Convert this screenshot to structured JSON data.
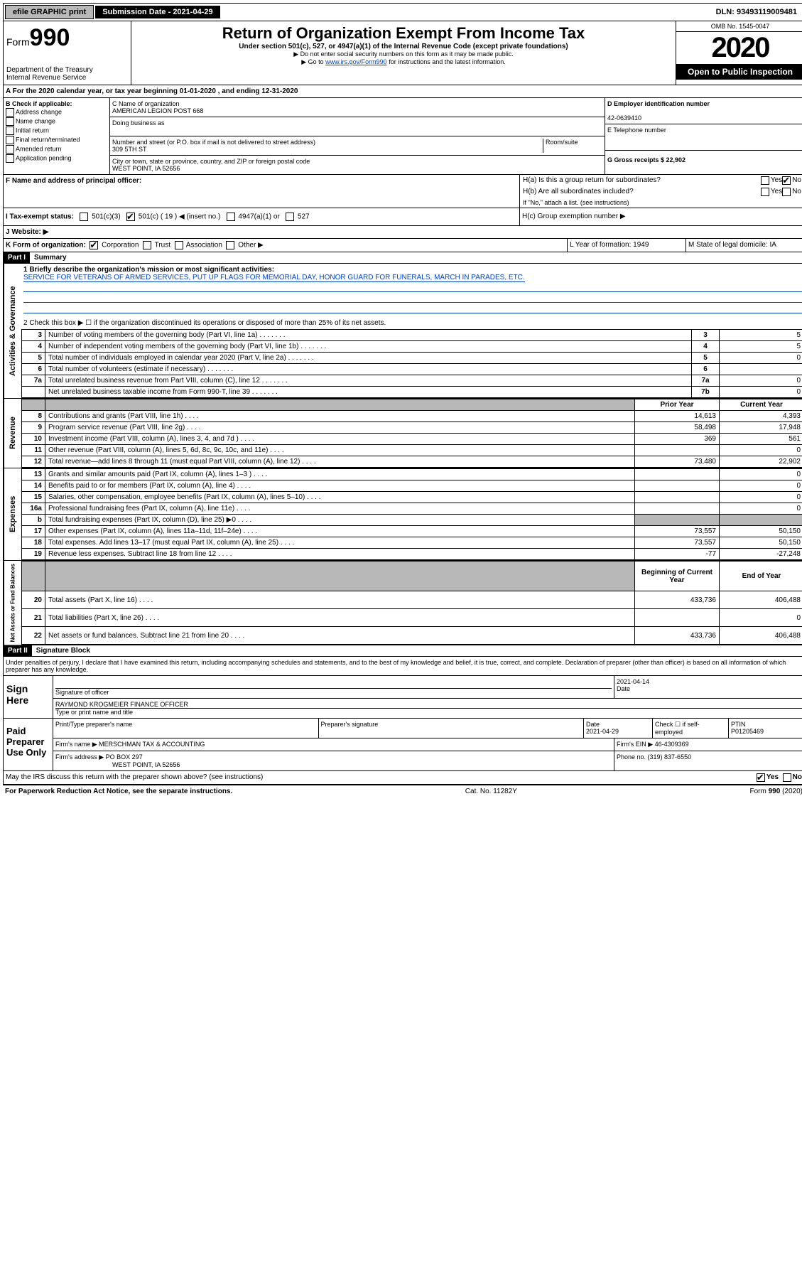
{
  "topbar": {
    "efile": "efile GRAPHIC print",
    "sub_label": "Submission Date - 2021-04-29",
    "dln": "DLN: 93493119009481"
  },
  "header": {
    "form": "Form",
    "form_num": "990",
    "dept": "Department of the Treasury",
    "irs": "Internal Revenue Service",
    "title": "Return of Organization Exempt From Income Tax",
    "subtitle": "Under section 501(c), 527, or 4947(a)(1) of the Internal Revenue Code (except private foundations)",
    "note1": "▶ Do not enter social security numbers on this form as it may be made public.",
    "note2_pre": "▶ Go to ",
    "note2_link": "www.irs.gov/Form990",
    "note2_post": " for instructions and the latest information.",
    "omb": "OMB No. 1545-0047",
    "year": "2020",
    "open": "Open to Public Inspection"
  },
  "section_a": "A For the 2020 calendar year, or tax year beginning 01-01-2020   , and ending 12-31-2020",
  "section_b": {
    "label": "B Check if applicable:",
    "items": [
      "Address change",
      "Name change",
      "Initial return",
      "Final return/terminated",
      "Amended return",
      "Application pending"
    ]
  },
  "section_c": {
    "name_label": "C Name of organization",
    "name": "AMERICAN LEGION POST 668",
    "dba_label": "Doing business as",
    "addr_label": "Number and street (or P.O. box if mail is not delivered to street address)",
    "room_label": "Room/suite",
    "addr": "309 5TH ST",
    "city_label": "City or town, state or province, country, and ZIP or foreign postal code",
    "city": "WEST POINT, IA  52656"
  },
  "section_d": {
    "label": "D Employer identification number",
    "value": "42-0639410"
  },
  "section_e": {
    "label": "E Telephone number",
    "value": ""
  },
  "section_g": {
    "label": "G Gross receipts $ 22,902"
  },
  "section_f": {
    "label": "F  Name and address of principal officer:"
  },
  "section_h": {
    "a": "H(a)  Is this a group return for subordinates?",
    "b": "H(b)  Are all subordinates included?",
    "b_note": "If \"No,\" attach a list. (see instructions)",
    "c": "H(c)  Group exemption number ▶",
    "yes": "Yes",
    "no": "No"
  },
  "section_i": {
    "label": "I  Tax-exempt status:",
    "opts": [
      "501(c)(3)",
      "501(c) ( 19 ) ◀ (insert no.)",
      "4947(a)(1) or",
      "527"
    ]
  },
  "section_j": {
    "label": "J  Website: ▶"
  },
  "section_k": {
    "label": "K Form of organization:",
    "opts": [
      "Corporation",
      "Trust",
      "Association",
      "Other ▶"
    ]
  },
  "section_l": {
    "label": "L Year of formation: 1949"
  },
  "section_m": {
    "label": "M State of legal domicile: IA"
  },
  "part1": {
    "header": "Part I",
    "title": "Summary",
    "vlabel_gov": "Activities & Governance",
    "vlabel_rev": "Revenue",
    "vlabel_exp": "Expenses",
    "vlabel_net": "Net Assets or Fund Balances",
    "line1_label": "1 Briefly describe the organization's mission or most significant activities:",
    "line1_text": "SERVICE FOR VETERANS OF ARMED SERVICES, PUT UP FLAGS FOR MEMORIAL DAY, HONOR GUARD FOR FUNERALS, MARCH IN PARADES, ETC.",
    "line2": "2  Check this box ▶ ☐  if the organization discontinued its operations or disposed of more than 25% of its net assets.",
    "prior_year": "Prior Year",
    "current_year": "Current Year",
    "beg_year": "Beginning of Current Year",
    "end_year": "End of Year",
    "rows_top": [
      {
        "n": "3",
        "d": "Number of voting members of the governing body (Part VI, line 1a)",
        "box": "3",
        "v": "5"
      },
      {
        "n": "4",
        "d": "Number of independent voting members of the governing body (Part VI, line 1b)",
        "box": "4",
        "v": "5"
      },
      {
        "n": "5",
        "d": "Total number of individuals employed in calendar year 2020 (Part V, line 2a)",
        "box": "5",
        "v": "0"
      },
      {
        "n": "6",
        "d": "Total number of volunteers (estimate if necessary)",
        "box": "6",
        "v": ""
      },
      {
        "n": "7a",
        "d": "Total unrelated business revenue from Part VIII, column (C), line 12",
        "box": "7a",
        "v": "0"
      },
      {
        "n": "",
        "d": "Net unrelated business taxable income from Form 990-T, line 39",
        "box": "7b",
        "v": "0"
      }
    ],
    "rows_rev": [
      {
        "n": "8",
        "d": "Contributions and grants (Part VIII, line 1h)",
        "p": "14,613",
        "c": "4,393"
      },
      {
        "n": "9",
        "d": "Program service revenue (Part VIII, line 2g)",
        "p": "58,498",
        "c": "17,948"
      },
      {
        "n": "10",
        "d": "Investment income (Part VIII, column (A), lines 3, 4, and 7d )",
        "p": "369",
        "c": "561"
      },
      {
        "n": "11",
        "d": "Other revenue (Part VIII, column (A), lines 5, 6d, 8c, 9c, 10c, and 11e)",
        "p": "",
        "c": "0"
      },
      {
        "n": "12",
        "d": "Total revenue—add lines 8 through 11 (must equal Part VIII, column (A), line 12)",
        "p": "73,480",
        "c": "22,902"
      }
    ],
    "rows_exp": [
      {
        "n": "13",
        "d": "Grants and similar amounts paid (Part IX, column (A), lines 1–3 )",
        "p": "",
        "c": "0"
      },
      {
        "n": "14",
        "d": "Benefits paid to or for members (Part IX, column (A), line 4)",
        "p": "",
        "c": "0"
      },
      {
        "n": "15",
        "d": "Salaries, other compensation, employee benefits (Part IX, column (A), lines 5–10)",
        "p": "",
        "c": "0"
      },
      {
        "n": "16a",
        "d": "Professional fundraising fees (Part IX, column (A), line 11e)",
        "p": "",
        "c": "0"
      },
      {
        "n": "b",
        "d": "Total fundraising expenses (Part IX, column (D), line 25) ▶0",
        "p": "grey",
        "c": "grey"
      },
      {
        "n": "17",
        "d": "Other expenses (Part IX, column (A), lines 11a–11d, 11f–24e)",
        "p": "73,557",
        "c": "50,150"
      },
      {
        "n": "18",
        "d": "Total expenses. Add lines 13–17 (must equal Part IX, column (A), line 25)",
        "p": "73,557",
        "c": "50,150"
      },
      {
        "n": "19",
        "d": "Revenue less expenses. Subtract line 18 from line 12",
        "p": "-77",
        "c": "-27,248"
      }
    ],
    "rows_net": [
      {
        "n": "20",
        "d": "Total assets (Part X, line 16)",
        "p": "433,736",
        "c": "406,488"
      },
      {
        "n": "21",
        "d": "Total liabilities (Part X, line 26)",
        "p": "",
        "c": "0"
      },
      {
        "n": "22",
        "d": "Net assets or fund balances. Subtract line 21 from line 20",
        "p": "433,736",
        "c": "406,488"
      }
    ]
  },
  "part2": {
    "header": "Part II",
    "title": "Signature Block",
    "decl": "Under penalties of perjury, I declare that I have examined this return, including accompanying schedules and statements, and to the best of my knowledge and belief, it is true, correct, and complete. Declaration of preparer (other than officer) is based on all information of which preparer has any knowledge.",
    "sign_here": "Sign Here",
    "sig_officer": "Signature of officer",
    "sig_date": "2021-04-14",
    "date_label": "Date",
    "name_title": "RAYMOND KROGMEIER  FINANCE OFFICER",
    "name_label": "Type or print name and title",
    "paid": "Paid Preparer Use Only",
    "prep_name_label": "Print/Type preparer's name",
    "prep_sig_label": "Preparer's signature",
    "prep_date": "2021-04-29",
    "check_self": "Check ☐ if self-employed",
    "ptin_label": "PTIN",
    "ptin": "P01205469",
    "firm_name_label": "Firm's name    ▶",
    "firm_name": "MERSCHMAN TAX & ACCOUNTING",
    "firm_ein": "Firm's EIN ▶ 46-4309369",
    "firm_addr_label": "Firm's address ▶",
    "firm_addr": "PO BOX 297",
    "firm_city": "WEST POINT, IA  52656",
    "phone": "Phone no. (319) 837-6550",
    "discuss": "May the IRS discuss this return with the preparer shown above? (see instructions)",
    "yes": "Yes",
    "no": "No"
  },
  "footer": {
    "left": "For Paperwork Reduction Act Notice, see the separate instructions.",
    "mid": "Cat. No. 11282Y",
    "right": "Form 990 (2020)"
  }
}
